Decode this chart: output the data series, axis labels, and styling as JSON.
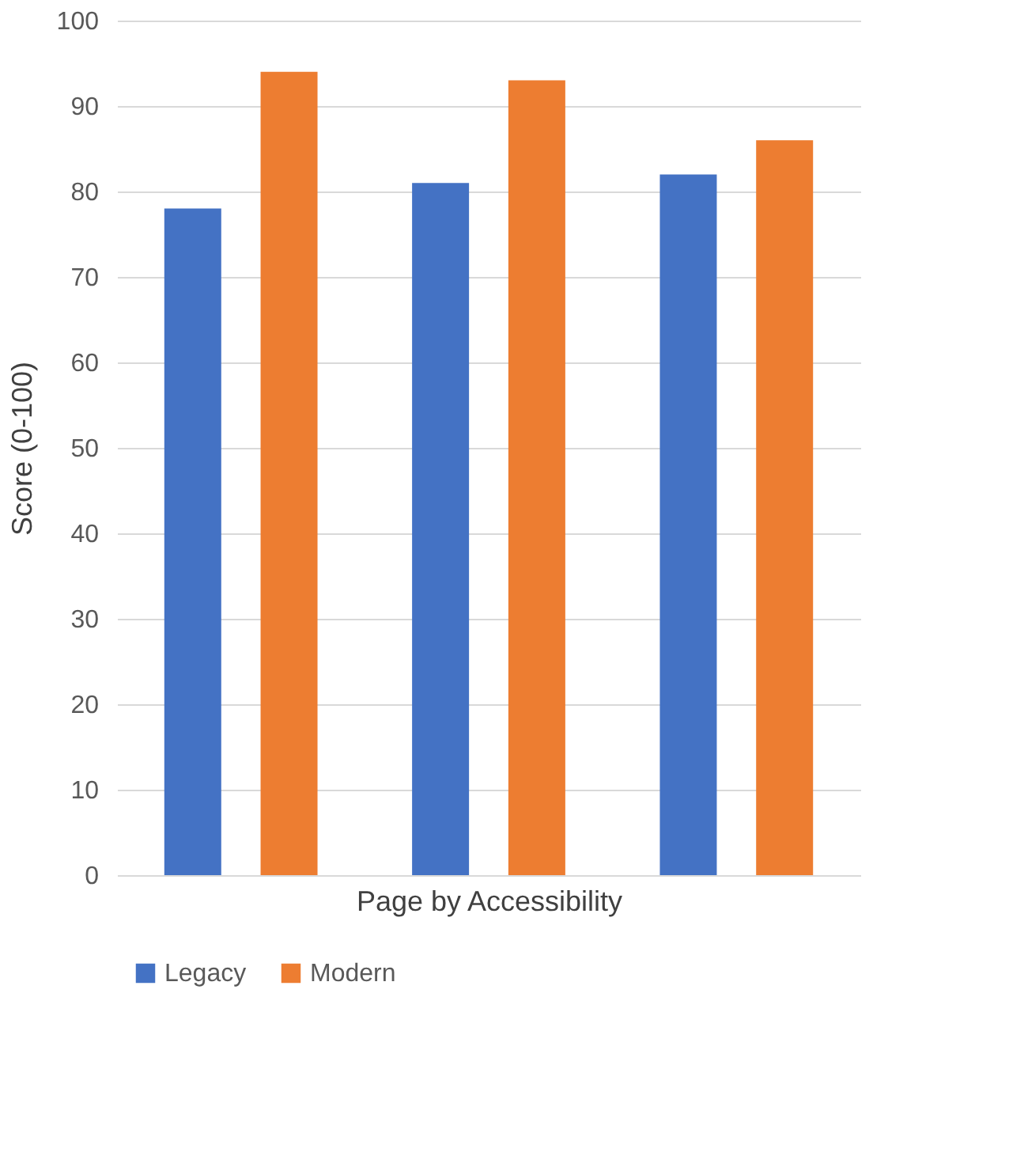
{
  "chart_data": {
    "type": "bar",
    "xlabel": "Page by Accessibility",
    "ylabel": "Score (0-100)",
    "categories": [
      null,
      null,
      null
    ],
    "series": [
      {
        "name": "Legacy",
        "color": "#4472c4",
        "values": [
          78,
          81,
          82
        ]
      },
      {
        "name": "Modern",
        "color": "#ed7d31",
        "values": [
          94,
          93,
          86
        ]
      }
    ],
    "ylim": [
      0,
      100
    ],
    "yticks": [
      0,
      10,
      20,
      30,
      40,
      50,
      60,
      70,
      80,
      90,
      100
    ],
    "grid": "y",
    "legend": "bottom",
    "tick_labels": "y"
  }
}
